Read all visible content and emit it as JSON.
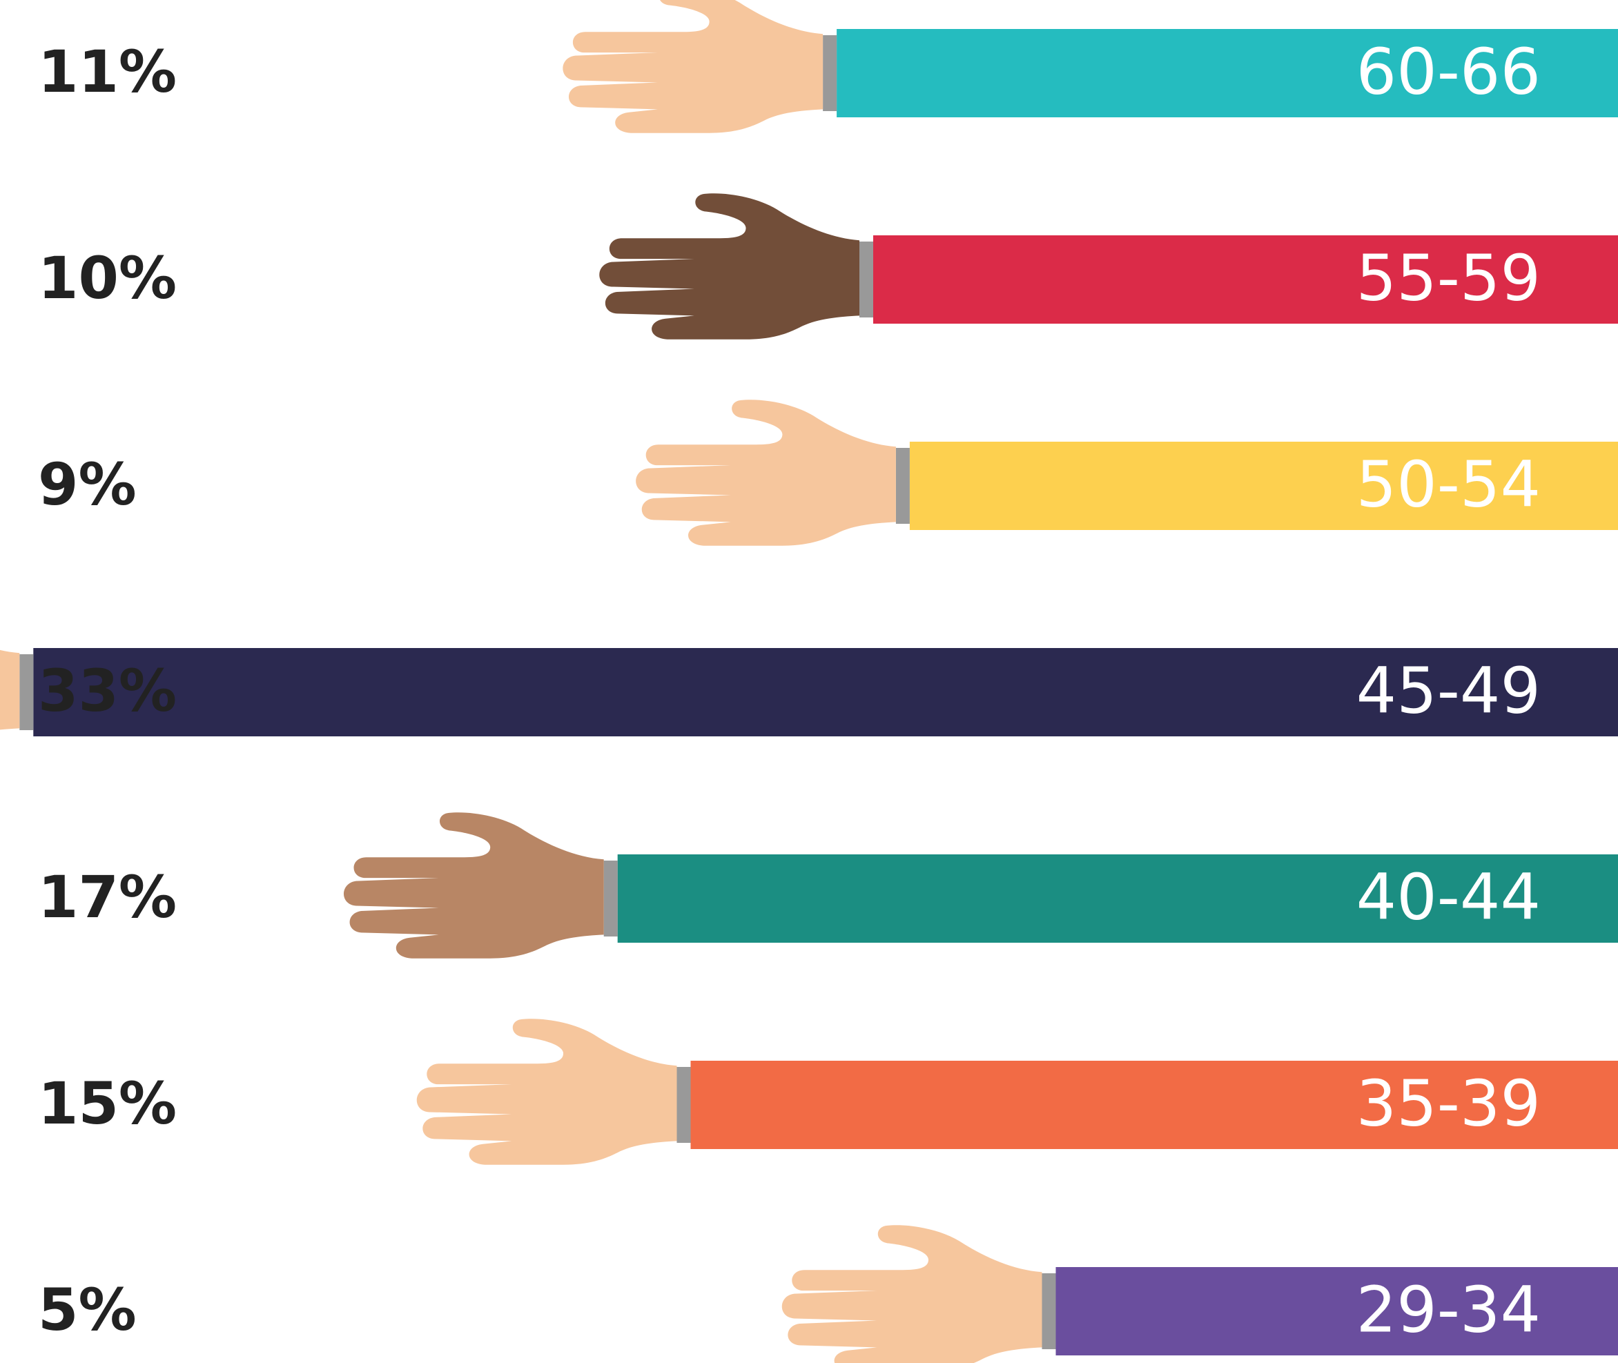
{
  "chart_data": {
    "type": "bar",
    "categories": [
      "60-66",
      "55-59",
      "50-54",
      "45-49",
      "40-44",
      "35-39",
      "29-34"
    ],
    "values": [
      11,
      10,
      9,
      33,
      17,
      15,
      5
    ],
    "value_labels": [
      "11%",
      "10%",
      "9%",
      "33%",
      "17%",
      "15%",
      "5%"
    ],
    "colors": [
      "#25bcbf",
      "#db2b48",
      "#fdd04f",
      "#2b2950",
      "#1b8e82",
      "#f26b45",
      "#6a4e9e"
    ],
    "hand_colors": [
      "#f6c69d",
      "#724e39",
      "#f6c69d",
      "#f6c69d",
      "#b88665",
      "#f6c69d",
      "#f6c69d"
    ]
  }
}
